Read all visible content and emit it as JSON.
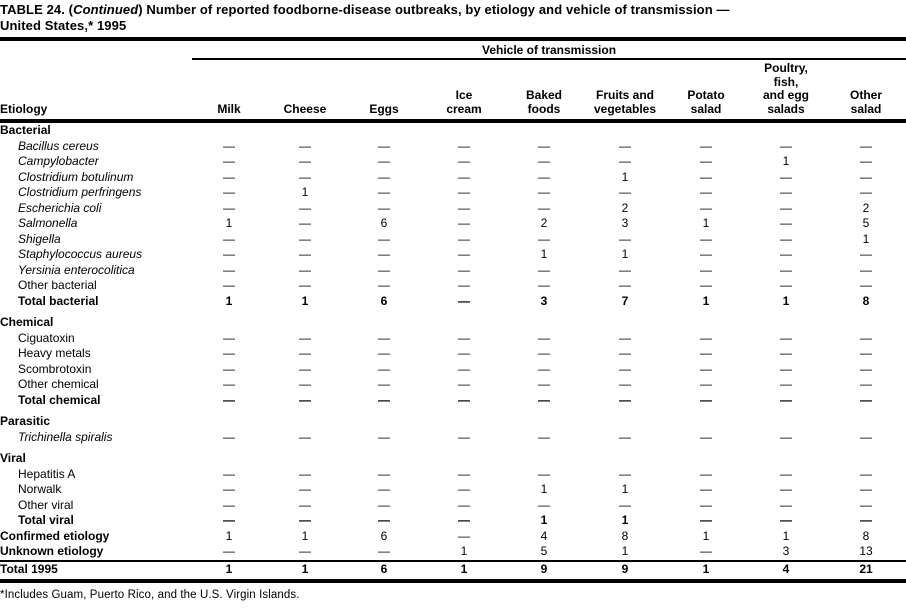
{
  "page": {
    "title": {
      "line1_prefix": "TABLE 24. (",
      "line1_continued": "Continued",
      "line1_suffix": ") Number of reported foodborne-disease outbreaks, by etiology and vehicle of transmission —",
      "line2": "United States,* 1995"
    },
    "footnote": "*Includes Guam, Puerto Rico, and the U.S. Virgin Islands."
  },
  "table": {
    "spanner": "Vehicle of transmission",
    "etiology_header": "Etiology",
    "columns": [
      {
        "name": "milk",
        "lines": [
          "Milk"
        ]
      },
      {
        "name": "cheese",
        "lines": [
          "Cheese"
        ]
      },
      {
        "name": "eggs",
        "lines": [
          "Eggs"
        ]
      },
      {
        "name": "ice-cream",
        "lines": [
          "Ice",
          "cream"
        ]
      },
      {
        "name": "baked-foods",
        "lines": [
          "Baked",
          "foods"
        ]
      },
      {
        "name": "fruits-and-vegetables",
        "lines": [
          "Fruits and",
          "vegetables"
        ]
      },
      {
        "name": "potato-salad",
        "lines": [
          "Potato",
          "salad"
        ]
      },
      {
        "name": "poultry-fish-egg-salads",
        "lines": [
          "Poultry,",
          "fish,",
          "and egg",
          "salads"
        ]
      },
      {
        "name": "other-salad",
        "lines": [
          "Other",
          "salad"
        ]
      }
    ],
    "sections": [
      {
        "header": "Bacterial",
        "rows": [
          {
            "label": "Bacillus cereus",
            "style": "species",
            "values": [
              "—",
              "—",
              "—",
              "—",
              "—",
              "—",
              "—",
              "—",
              "—"
            ]
          },
          {
            "label": "Campylobacter",
            "style": "species",
            "values": [
              "—",
              "—",
              "—",
              "—",
              "—",
              "—",
              "—",
              "1",
              "—"
            ]
          },
          {
            "label": "Clostridium botulinum",
            "style": "species",
            "values": [
              "—",
              "—",
              "—",
              "—",
              "—",
              "1",
              "—",
              "—",
              "—"
            ]
          },
          {
            "label": "Clostridium perfringens",
            "style": "species",
            "values": [
              "—",
              "1",
              "—",
              "—",
              "—",
              "—",
              "—",
              "—",
              "—"
            ]
          },
          {
            "label": "Escherichia coli",
            "style": "species",
            "values": [
              "—",
              "—",
              "—",
              "—",
              "—",
              "2",
              "—",
              "—",
              "2"
            ]
          },
          {
            "label": "Salmonella",
            "style": "species",
            "values": [
              "1",
              "—",
              "6",
              "—",
              "2",
              "3",
              "1",
              "—",
              "5"
            ]
          },
          {
            "label": "Shigella",
            "style": "species",
            "values": [
              "—",
              "—",
              "—",
              "—",
              "—",
              "—",
              "—",
              "—",
              "1"
            ]
          },
          {
            "label": "Staphylococcus aureus",
            "style": "species",
            "values": [
              "—",
              "—",
              "—",
              "—",
              "1",
              "1",
              "—",
              "—",
              "—"
            ]
          },
          {
            "label": "Yersinia enterocolitica",
            "style": "species",
            "values": [
              "—",
              "—",
              "—",
              "—",
              "—",
              "—",
              "—",
              "—",
              "—"
            ]
          },
          {
            "label": "Other bacterial",
            "style": "plain",
            "values": [
              "—",
              "—",
              "—",
              "—",
              "—",
              "—",
              "—",
              "—",
              "—"
            ]
          },
          {
            "label": "Total bacterial",
            "style": "total",
            "values": [
              "1",
              "1",
              "6",
              "—",
              "3",
              "7",
              "1",
              "1",
              "8"
            ]
          }
        ]
      },
      {
        "header": "Chemical",
        "rows": [
          {
            "label": "Ciguatoxin",
            "style": "plain",
            "values": [
              "—",
              "—",
              "—",
              "—",
              "—",
              "—",
              "—",
              "—",
              "—"
            ]
          },
          {
            "label": "Heavy metals",
            "style": "plain",
            "values": [
              "—",
              "—",
              "—",
              "—",
              "—",
              "—",
              "—",
              "—",
              "—"
            ]
          },
          {
            "label": "Scombrotoxin",
            "style": "plain",
            "values": [
              "—",
              "—",
              "—",
              "—",
              "—",
              "—",
              "—",
              "—",
              "—"
            ]
          },
          {
            "label": "Other chemical",
            "style": "plain",
            "values": [
              "—",
              "—",
              "—",
              "—",
              "—",
              "—",
              "—",
              "—",
              "—"
            ]
          },
          {
            "label": "Total chemical",
            "style": "total",
            "values": [
              "—",
              "—",
              "—",
              "—",
              "—",
              "—",
              "—",
              "—",
              "—"
            ]
          }
        ]
      },
      {
        "header": "Parasitic",
        "rows": [
          {
            "label": "Trichinella spiralis",
            "style": "species",
            "values": [
              "—",
              "—",
              "—",
              "—",
              "—",
              "—",
              "—",
              "—",
              "—"
            ]
          }
        ]
      },
      {
        "header": "Viral",
        "rows": [
          {
            "label": "Hepatitis A",
            "style": "plain",
            "values": [
              "—",
              "—",
              "—",
              "—",
              "—",
              "—",
              "—",
              "—",
              "—"
            ]
          },
          {
            "label": "Norwalk",
            "style": "plain",
            "values": [
              "—",
              "—",
              "—",
              "—",
              "1",
              "1",
              "—",
              "—",
              "—"
            ]
          },
          {
            "label": "Other viral",
            "style": "plain",
            "values": [
              "—",
              "—",
              "—",
              "—",
              "—",
              "—",
              "—",
              "—",
              "—"
            ]
          },
          {
            "label": "Total viral",
            "style": "total",
            "values": [
              "—",
              "—",
              "—",
              "—",
              "1",
              "1",
              "—",
              "—",
              "—"
            ]
          }
        ]
      },
      {
        "header": null,
        "rows": [
          {
            "label": "Confirmed etiology",
            "style": "summary",
            "values": [
              "1",
              "1",
              "6",
              "—",
              "4",
              "8",
              "1",
              "1",
              "8"
            ]
          },
          {
            "label": "Unknown etiology",
            "style": "summary",
            "values": [
              "—",
              "—",
              "—",
              "1",
              "5",
              "1",
              "—",
              "3",
              "13"
            ]
          }
        ]
      }
    ],
    "total_row": {
      "label": "Total 1995",
      "values": [
        "1",
        "1",
        "6",
        "1",
        "9",
        "9",
        "1",
        "4",
        "21"
      ]
    }
  }
}
